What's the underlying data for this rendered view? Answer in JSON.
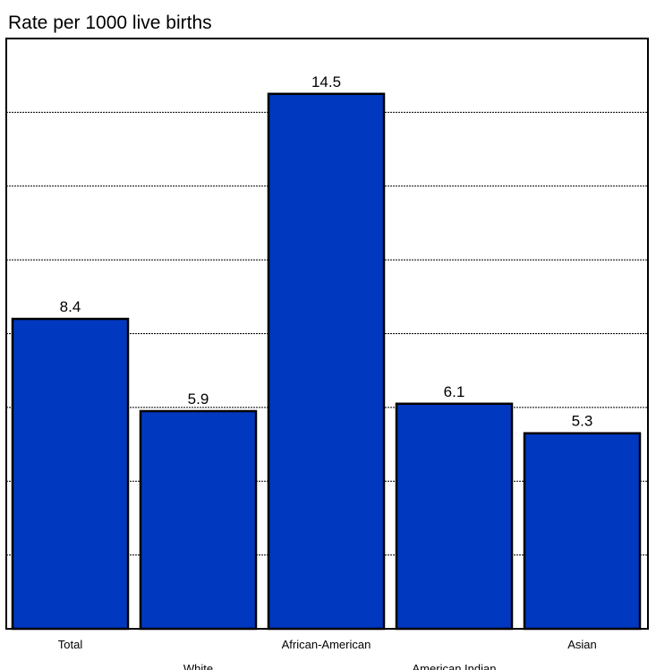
{
  "chart_data": {
    "type": "bar",
    "title": "Rate per 1000 live births",
    "categories": [
      "Total",
      "White",
      "African-American",
      "American Indian",
      "Asian"
    ],
    "values": [
      8.4,
      5.9,
      14.5,
      6.1,
      5.3
    ],
    "ylim": [
      0,
      16
    ],
    "ytick_step": 2,
    "grid": true,
    "bar_color": "#0039BF",
    "bar_edge_color": "#000000",
    "grid_color": "#000000"
  }
}
